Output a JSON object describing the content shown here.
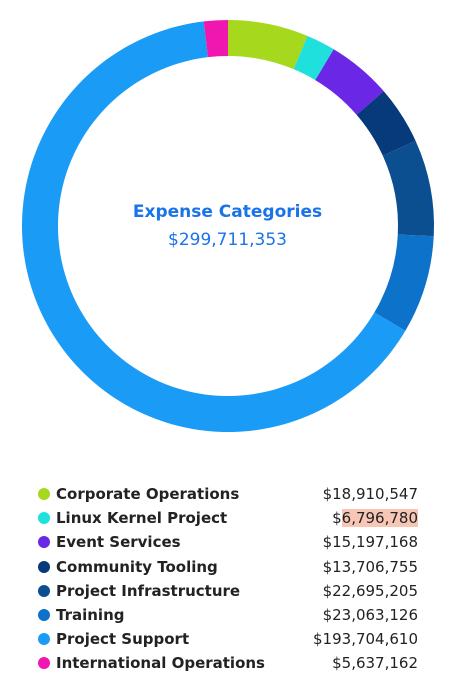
{
  "chart_data": {
    "type": "pie",
    "title": "Expense Categories",
    "total": "$299,711,353",
    "categories": [
      "Corporate Operations",
      "Linux Kernel Project",
      "Event Services",
      "Community Tooling",
      "Project Infrastructure",
      "Training",
      "Project Support",
      "International Operations"
    ],
    "values": [
      18910547,
      6796780,
      15197168,
      13706755,
      22695205,
      23063126,
      193704610,
      5637162
    ],
    "value_labels": [
      "$18,910,547",
      "$6,796,780",
      "$15,197,168",
      "$13,706,755",
      "$22,695,205",
      "$23,063,126",
      "$193,704,610",
      "$5,637,162"
    ],
    "colors": [
      "#a6d81e",
      "#1fe0dc",
      "#6a28e6",
      "#063a7a",
      "#0b4f91",
      "#0d72c9",
      "#1a9bf5",
      "#f017b0"
    ],
    "highlighted_index": 1,
    "legend_position": "bottom"
  }
}
